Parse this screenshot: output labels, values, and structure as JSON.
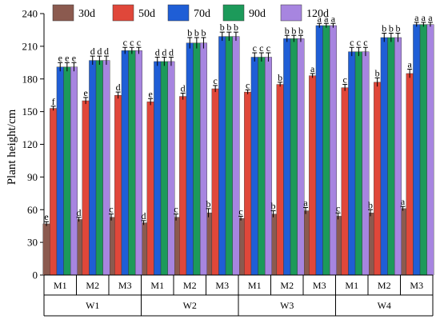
{
  "chart_data": {
    "type": "bar",
    "title": "",
    "ylabel": "Plant height/cm",
    "xlabel": "",
    "ylim": [
      0,
      240
    ],
    "yticks": [
      0,
      30,
      60,
      90,
      120,
      150,
      180,
      210,
      240
    ],
    "legend_position": "top",
    "categories": [
      "M1",
      "M2",
      "M3",
      "M1",
      "M2",
      "M3",
      "M1",
      "M2",
      "M3",
      "M1",
      "M2",
      "M3"
    ],
    "groups": [
      {
        "label": "W1",
        "categories": [
          0,
          1,
          2
        ]
      },
      {
        "label": "W2",
        "categories": [
          3,
          4,
          5
        ]
      },
      {
        "label": "W3",
        "categories": [
          6,
          7,
          8
        ]
      },
      {
        "label": "W4",
        "categories": [
          9,
          10,
          11
        ]
      }
    ],
    "series": [
      {
        "name": "30d",
        "color": "#8b5a4f",
        "values": [
          47,
          51,
          53,
          48,
          53,
          57,
          52,
          56,
          59,
          54,
          57,
          61
        ],
        "errors": [
          2,
          2,
          3,
          2,
          3,
          4,
          2,
          3,
          3,
          3,
          3,
          2
        ],
        "labels": [
          "e",
          "d",
          "c",
          "d",
          "c",
          "b",
          "c",
          "b",
          "a",
          "c",
          "b",
          "a"
        ]
      },
      {
        "name": "50d",
        "color": "#e0473a",
        "values": [
          153,
          160,
          165,
          159,
          164,
          171,
          168,
          175,
          183,
          172,
          177,
          185
        ],
        "errors": [
          2,
          3,
          3,
          3,
          3,
          3,
          2,
          2,
          2,
          3,
          4,
          4
        ],
        "labels": [
          "f",
          "e",
          "d",
          "e",
          "d",
          "c",
          "c",
          "b",
          "a",
          "c",
          "b",
          "a"
        ]
      },
      {
        "name": "70d",
        "color": "#1f5ed6",
        "values": [
          191,
          197,
          206,
          196,
          213,
          219,
          200,
          217,
          229,
          205,
          218,
          230
        ],
        "errors": [
          4,
          4,
          3,
          4,
          5,
          4,
          4,
          3,
          2,
          4,
          4,
          2
        ],
        "labels": [
          "e",
          "d",
          "c",
          "d",
          "b",
          "b",
          "c",
          "b",
          "a",
          "c",
          "b",
          "a"
        ]
      },
      {
        "name": "90d",
        "color": "#1c9a5a",
        "values": [
          191,
          197,
          206,
          196,
          213,
          219,
          200,
          217,
          229,
          205,
          218,
          230
        ],
        "errors": [
          4,
          4,
          3,
          4,
          5,
          4,
          4,
          3,
          2,
          4,
          4,
          2
        ],
        "labels": [
          "e",
          "d",
          "c",
          "d",
          "b",
          "b",
          "c",
          "b",
          "a",
          "c",
          "b",
          "a"
        ]
      },
      {
        "name": "120d",
        "color": "#a785e0",
        "values": [
          191,
          197,
          206,
          196,
          213,
          219,
          200,
          217,
          229,
          205,
          218,
          230
        ],
        "errors": [
          4,
          4,
          3,
          4,
          5,
          4,
          4,
          3,
          2,
          4,
          4,
          2
        ],
        "labels": [
          "e",
          "d",
          "c",
          "d",
          "b",
          "b",
          "c",
          "b",
          "a",
          "c",
          "b",
          "a"
        ]
      }
    ]
  }
}
